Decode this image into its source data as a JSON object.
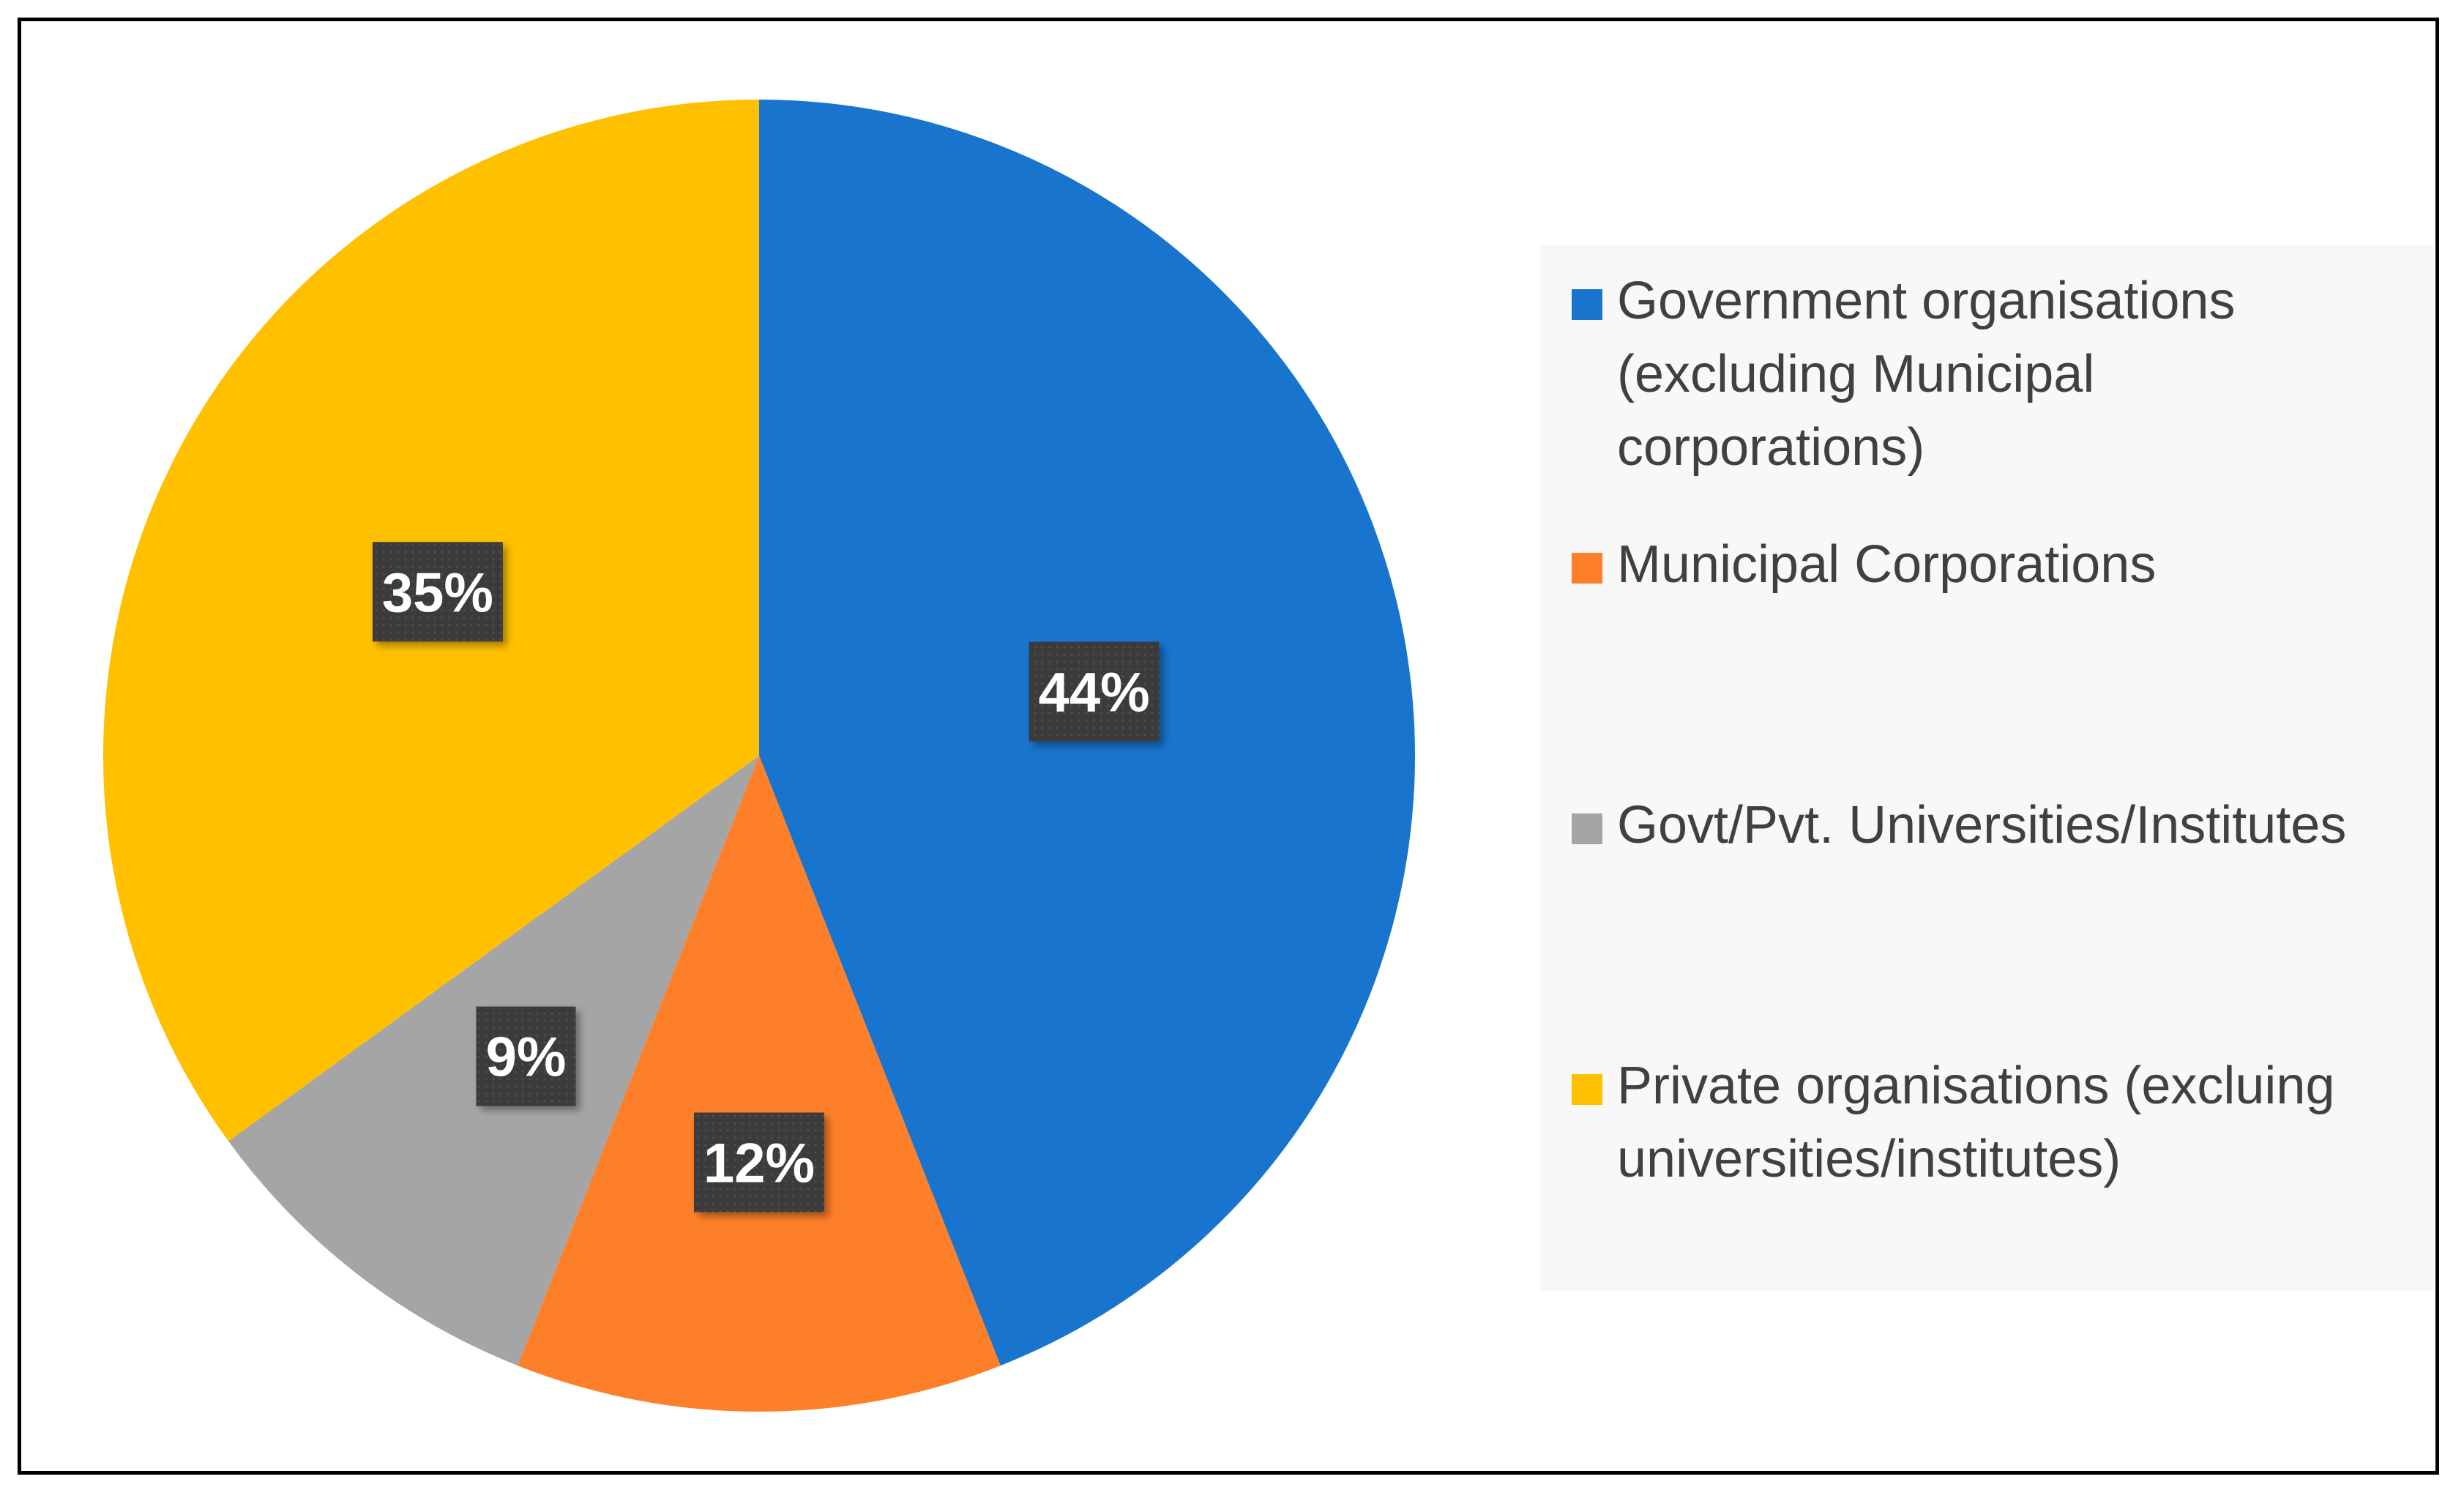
{
  "chart_data": {
    "type": "pie",
    "categories": [
      "Government organisations (excluding Municipal corporations)",
      "Municipal Corporations",
      "Govt/Pvt. Universities/Institutes",
      "Private organisations (excluing universities/institutes)"
    ],
    "values": [
      44,
      12,
      9,
      35
    ],
    "data_labels": [
      "44%",
      "12%",
      "9%",
      "35%"
    ],
    "colors": [
      "#1874CD",
      "#FE7F2A",
      "#A5A5A5",
      "#FFC000"
    ],
    "start_angle": "12 o'clock",
    "direction": "clockwise",
    "legend": "right"
  }
}
